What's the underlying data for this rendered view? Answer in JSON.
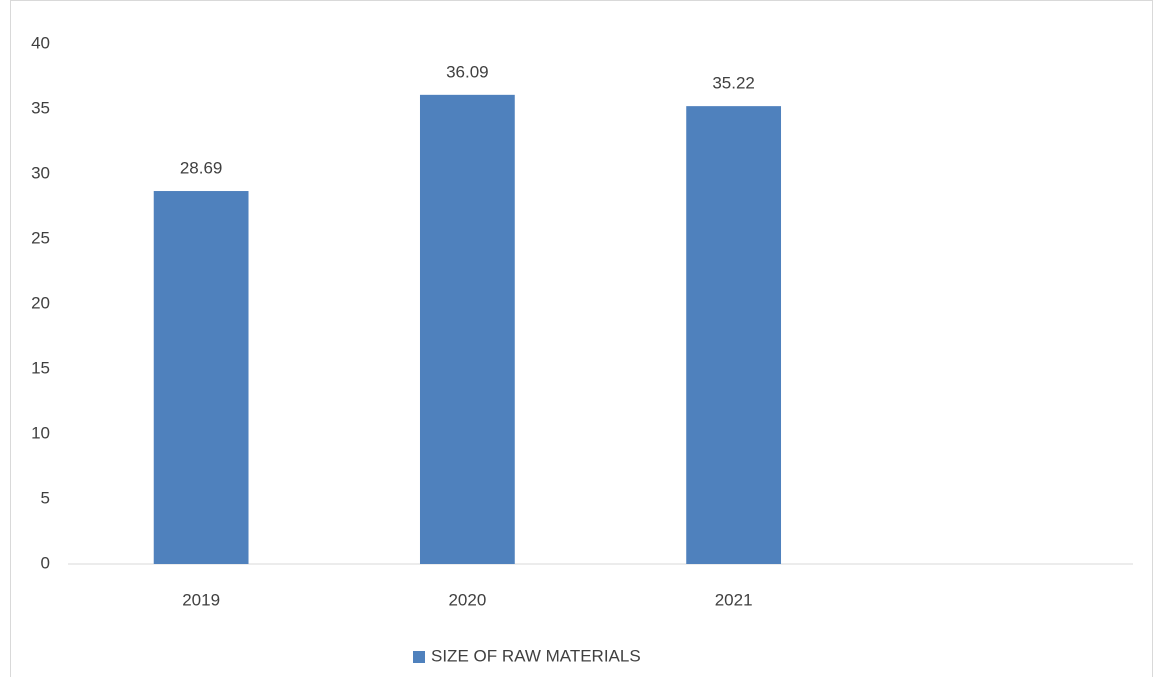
{
  "chart_data": {
    "type": "bar",
    "categories": [
      "2019",
      "2020",
      "2021",
      null
    ],
    "series": [
      {
        "name": "SIZE OF RAW MATERIALS",
        "color": "#4f81bd",
        "values": [
          28.69,
          36.09,
          35.22,
          null
        ]
      }
    ],
    "ylim": [
      0,
      40
    ],
    "yticks": [
      0,
      5,
      10,
      15,
      20,
      25,
      30,
      35,
      40
    ],
    "grid": false,
    "legend": "bottom",
    "data_labels": true
  }
}
